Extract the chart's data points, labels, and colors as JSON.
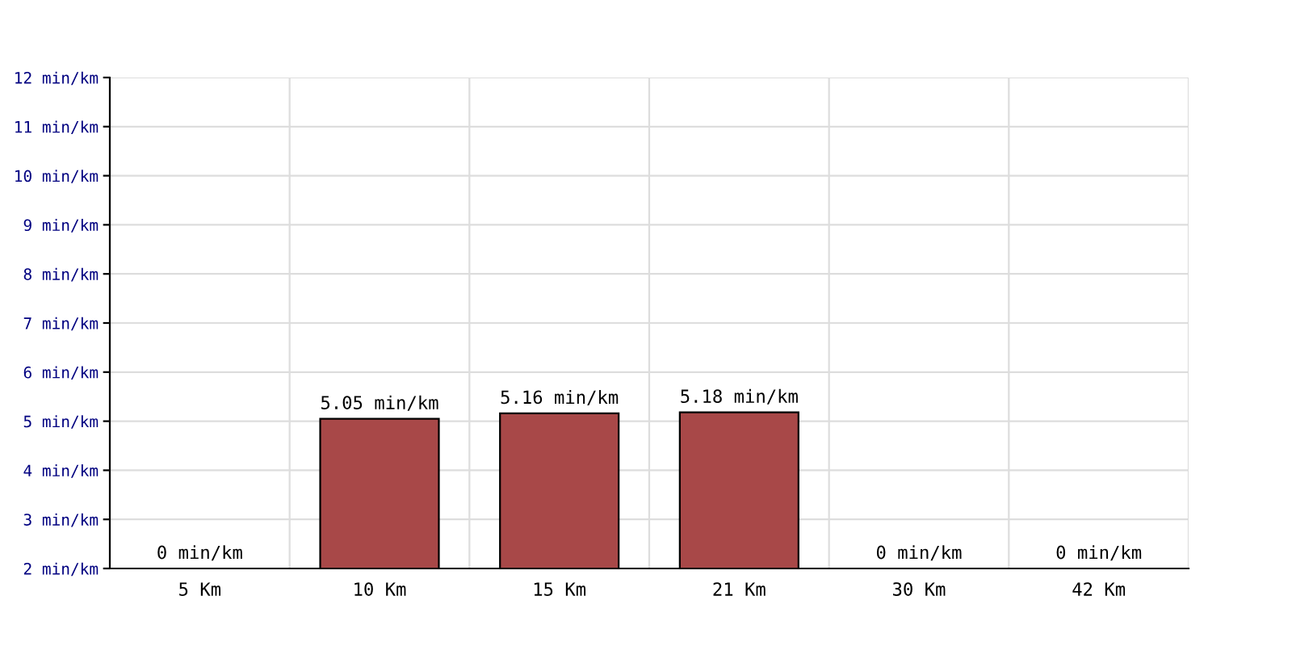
{
  "chart_data": {
    "type": "bar",
    "categories": [
      "5 Km",
      "10 Km",
      "15 Km",
      "21 Km",
      "30 Km",
      "42 Km"
    ],
    "values": [
      null,
      5.05,
      5.16,
      5.18,
      null,
      null
    ],
    "value_labels": [
      "0 min/km",
      "5.05 min/km",
      "5.16 min/km",
      "5.18 min/km",
      "0 min/km",
      "0 min/km"
    ],
    "color": "#a84848",
    "ylim": [
      2,
      12
    ],
    "yticks": [
      {
        "value": 2,
        "label": "2 min/km"
      },
      {
        "value": 3,
        "label": "3 min/km"
      },
      {
        "value": 4,
        "label": "4 min/km"
      },
      {
        "value": 5,
        "label": "5 min/km"
      },
      {
        "value": 6,
        "label": "6 min/km"
      },
      {
        "value": 7,
        "label": "7 min/km"
      },
      {
        "value": 8,
        "label": "8 min/km"
      },
      {
        "value": 9,
        "label": "9 min/km"
      },
      {
        "value": 10,
        "label": "10 min/km"
      },
      {
        "value": 11,
        "label": "11 min/km"
      },
      {
        "value": 12,
        "label": "12 min/km"
      }
    ],
    "grid": true
  }
}
